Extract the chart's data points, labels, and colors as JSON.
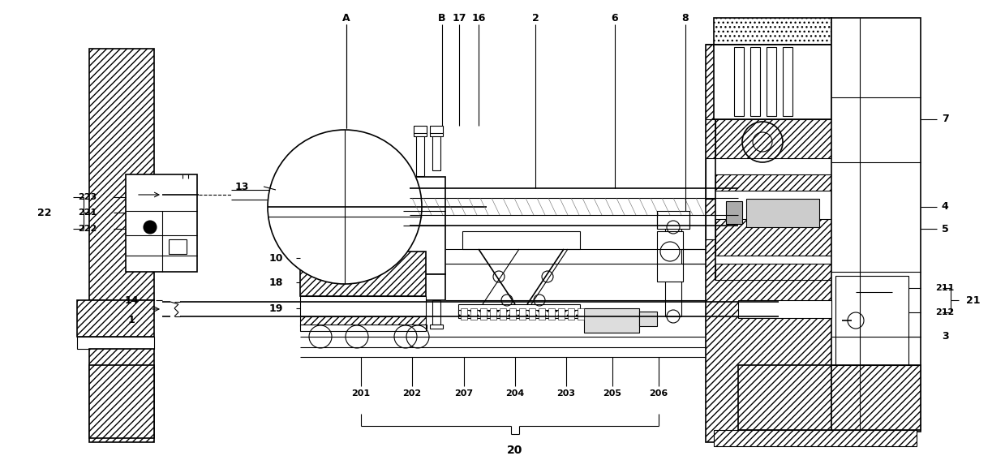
{
  "fig_width": 12.39,
  "fig_height": 5.83,
  "bg_color": "#ffffff",
  "line_color": "#000000"
}
